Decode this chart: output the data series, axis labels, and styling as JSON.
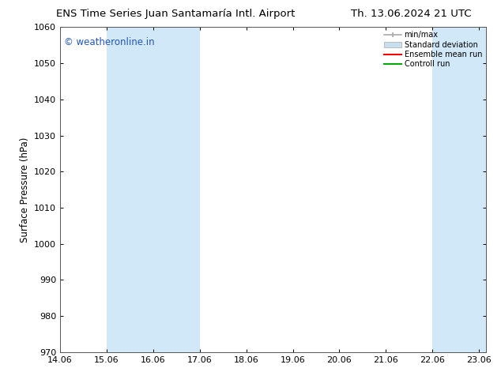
{
  "title_left": "ENS Time Series Juan Santamaría Intl. Airport",
  "title_right": "Th. 13.06.2024 21 UTC",
  "ylabel": "Surface Pressure (hPa)",
  "xlabel_ticks": [
    "14.06",
    "15.06",
    "16.06",
    "17.06",
    "18.06",
    "19.06",
    "20.06",
    "21.06",
    "22.06",
    "23.06"
  ],
  "x_ticks_numeric": [
    14.06,
    15.06,
    16.06,
    17.06,
    18.06,
    19.06,
    20.06,
    21.06,
    22.06,
    23.06
  ],
  "ylim": [
    970,
    1060
  ],
  "yticks": [
    970,
    980,
    990,
    1000,
    1010,
    1020,
    1030,
    1040,
    1050,
    1060
  ],
  "watermark": "© weatheronline.in",
  "watermark_color": "#2255bb",
  "bg_color": "#ffffff",
  "plot_bg_color": "#ffffff",
  "shaded_bands": [
    {
      "x_start": 15.06,
      "x_end": 17.06
    },
    {
      "x_start": 22.06,
      "x_end": 23.21
    }
  ],
  "shade_color": "#d0e8f8",
  "legend_entries": [
    {
      "label": "min/max",
      "color": "#aaaaaa",
      "type": "errorbar"
    },
    {
      "label": "Standard deviation",
      "color": "#c8dff0",
      "type": "box"
    },
    {
      "label": "Ensemble mean run",
      "color": "#ff0000",
      "type": "line"
    },
    {
      "label": "Controll run",
      "color": "#00aa00",
      "type": "line"
    }
  ],
  "border_color": "#888888",
  "tick_color": "#000000",
  "x_start": 14.06,
  "x_end": 23.21,
  "title_fontsize": 9.5,
  "label_fontsize": 8,
  "ylabel_fontsize": 8.5
}
